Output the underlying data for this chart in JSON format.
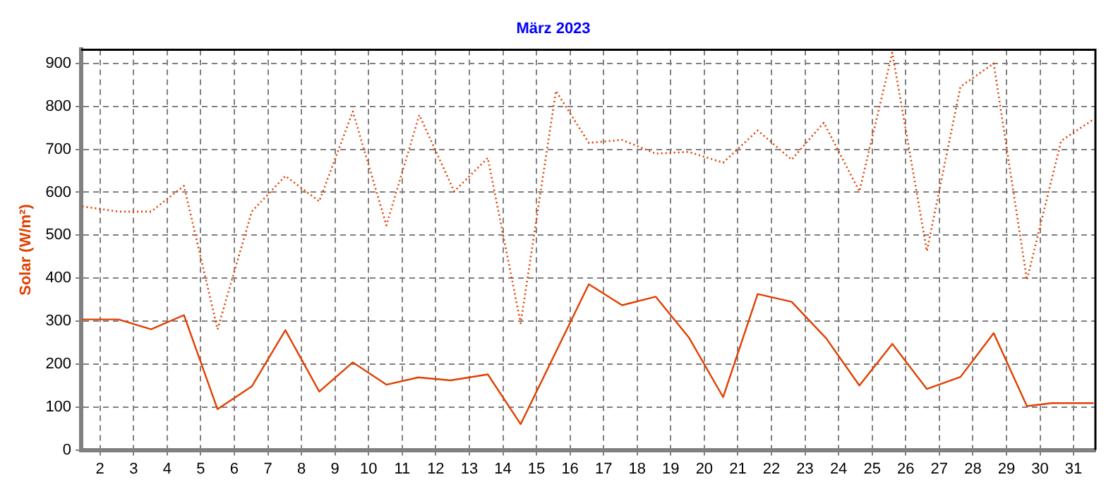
{
  "chart_data": {
    "type": "line",
    "title": "März 2023",
    "ylabel": "Solar (W/m²)",
    "xlim": [
      1.44,
      31.65
    ],
    "xticks": [
      2,
      3,
      4,
      5,
      6,
      7,
      8,
      9,
      10,
      11,
      12,
      13,
      14,
      15,
      16,
      17,
      18,
      19,
      20,
      21,
      22,
      23,
      24,
      25,
      26,
      27,
      28,
      29,
      30,
      31
    ],
    "ylim": [
      0,
      932
    ],
    "yticks": [
      0,
      100,
      200,
      300,
      400,
      500,
      600,
      700,
      800,
      900
    ],
    "grid": true,
    "legend": false,
    "marker": "none",
    "series": [
      {
        "color": "#e04000",
        "line_style": "dotted",
        "x": [
          1.47,
          2.55,
          3.52,
          4.5,
          5.5,
          6.52,
          7.52,
          8.53,
          9.53,
          10.53,
          11.51,
          12.55,
          13.55,
          14.53,
          15.58,
          16.56,
          17.55,
          18.55,
          19.54,
          20.56,
          21.59,
          22.6,
          23.56,
          24.62,
          25.6,
          26.63,
          27.63,
          28.62,
          29.61,
          30.63,
          31.6
        ],
        "values": [
          567,
          555,
          555,
          615,
          281,
          555,
          638,
          579,
          788,
          523,
          780,
          602,
          680,
          295,
          836,
          715,
          722,
          690,
          694,
          669,
          744,
          676,
          762,
          602,
          925,
          463,
          846,
          900,
          396,
          720,
          770
        ]
      },
      {
        "color": "#e04000",
        "line_style": "solid",
        "x": [
          1.47,
          2.55,
          3.52,
          4.5,
          5.5,
          6.52,
          7.52,
          8.53,
          9.53,
          10.53,
          11.48,
          12.44,
          13.55,
          14.53,
          16.56,
          17.55,
          18.55,
          19.54,
          20.56,
          21.59,
          22.6,
          23.63,
          24.62,
          25.6,
          26.63,
          27.63,
          28.62,
          29.61,
          30.34,
          31.6
        ],
        "values": [
          304,
          304,
          281,
          314,
          95,
          148,
          279,
          136,
          204,
          152,
          169,
          162,
          176,
          60,
          386,
          337,
          357,
          262,
          123,
          363,
          345,
          260,
          150,
          247,
          142,
          170,
          272,
          102,
          109,
          109
        ]
      }
    ]
  }
}
